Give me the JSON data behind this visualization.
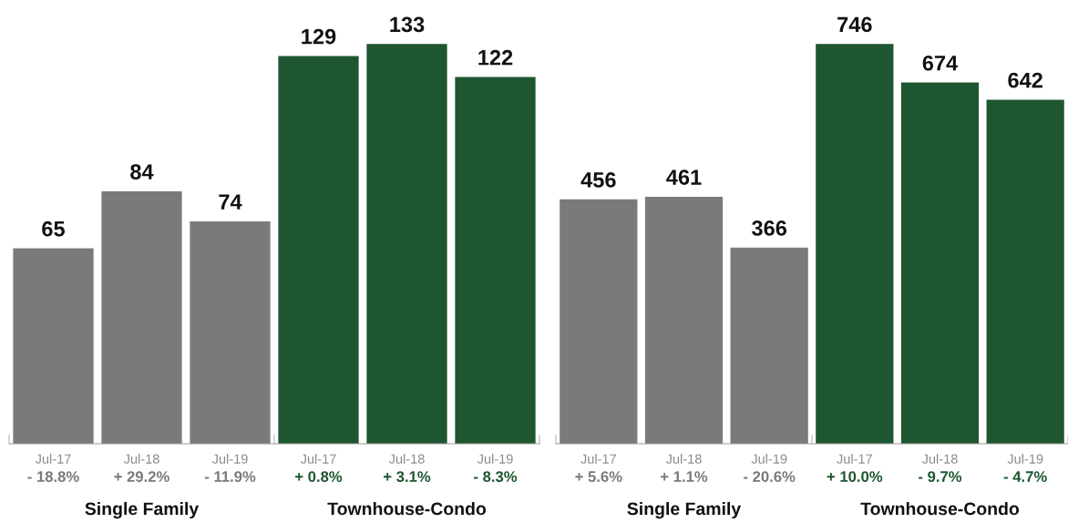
{
  "chart_data": [
    {
      "type": "bar",
      "categories": [
        "Jul-17",
        "Jul-18",
        "Jul-19",
        "Jul-17",
        "Jul-18",
        "Jul-19"
      ],
      "values": [
        65,
        84,
        74,
        129,
        133,
        122
      ],
      "colors": [
        "#7a7a7a",
        "#7a7a7a",
        "#7a7a7a",
        "#1e5631",
        "#1e5631",
        "#1e5631"
      ],
      "data_labels": true,
      "annotations": [
        "- 18.8%",
        "+ 29.2%",
        "- 11.9%",
        "+ 0.8%",
        "+ 3.1%",
        "- 8.3%",
        "Single Family",
        "Townhouse-Condo"
      ]
    },
    {
      "type": "bar",
      "categories": [
        "Jul-17",
        "Jul-18",
        "Jul-19",
        "Jul-17",
        "Jul-18",
        "Jul-19"
      ],
      "values": [
        456,
        461,
        366,
        746,
        674,
        642
      ],
      "colors": [
        "#7a7a7a",
        "#7a7a7a",
        "#7a7a7a",
        "#1e5631",
        "#1e5631",
        "#1e5631"
      ],
      "data_labels": true,
      "annotations": [
        "+ 5.6%",
        "+ 1.1%",
        "- 20.6%",
        "+ 10.0%",
        "- 9.7%",
        "- 4.7%",
        "Single Family",
        "Townhouse-Condo"
      ]
    }
  ]
}
